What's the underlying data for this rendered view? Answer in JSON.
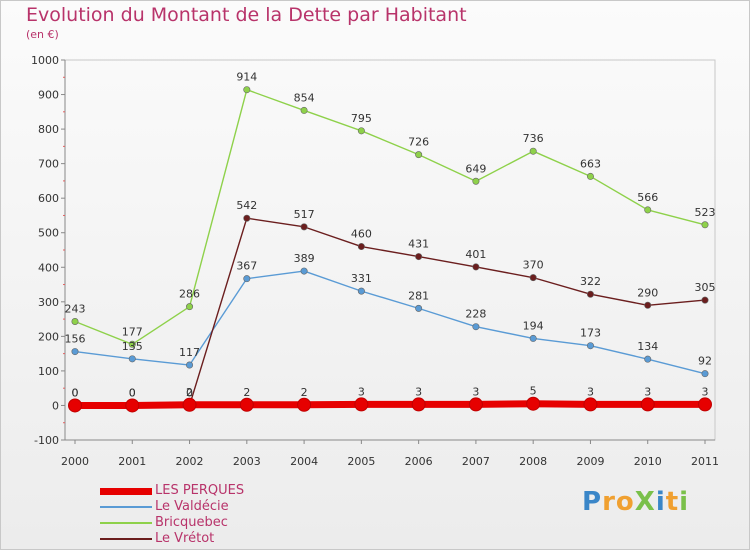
{
  "title": "Evolution du Montant de la Dette par Habitant",
  "subtitle": "(en €)",
  "brand": {
    "text": "ProXiti",
    "colors": [
      "#3a86c8",
      "#f0a030",
      "#f0a030",
      "#7ac04a",
      "#3a86c8",
      "#f0a030",
      "#7ac04a"
    ]
  },
  "chart_data": {
    "type": "line",
    "title": "Evolution du Montant de la Dette par Habitant",
    "subtitle": "(en €)",
    "x": [
      "2000",
      "2001",
      "2002",
      "2003",
      "2004",
      "2005",
      "2006",
      "2007",
      "2008",
      "2009",
      "2010",
      "2011"
    ],
    "yticks": [
      "-100",
      "0",
      "100",
      "200",
      "300",
      "400",
      "500",
      "600",
      "700",
      "800",
      "900",
      "1000"
    ],
    "ylim": [
      -100,
      1000
    ],
    "grid": false,
    "legend_position": "bottom-left",
    "series": [
      {
        "name": "LES PERQUES",
        "color": "#e60000",
        "values": [
          0,
          0,
          2,
          2,
          2,
          3,
          3,
          3,
          5,
          3,
          3,
          3
        ],
        "labels": [
          "0",
          "0",
          "2",
          "2",
          "2",
          "3",
          "3",
          "3",
          "5",
          "3",
          "3",
          "3"
        ]
      },
      {
        "name": "Le Valdécie",
        "color": "#5a9bd5",
        "values": [
          156,
          135,
          117,
          367,
          389,
          331,
          281,
          228,
          194,
          173,
          134,
          92
        ],
        "labels": [
          "156",
          "135",
          "117",
          "367",
          "389",
          "331",
          "281",
          "228",
          "194",
          "173",
          "134",
          "92"
        ]
      },
      {
        "name": "Bricquebec",
        "color": "#8ed14a",
        "values": [
          243,
          177,
          286,
          914,
          854,
          795,
          726,
          649,
          736,
          663,
          566,
          523
        ],
        "labels": [
          "243",
          "177",
          "286",
          "914",
          "854",
          "795",
          "726",
          "649",
          "736",
          "663",
          "566",
          "523"
        ]
      },
      {
        "name": "Le Vrétot",
        "color": "#6b1e1e",
        "values": [
          0,
          0,
          0,
          542,
          517,
          460,
          431,
          401,
          370,
          322,
          290,
          305
        ],
        "labels": [
          "0",
          "0",
          "0",
          "542",
          "517",
          "460",
          "431",
          "401",
          "370",
          "322",
          "290",
          "305"
        ]
      }
    ]
  }
}
